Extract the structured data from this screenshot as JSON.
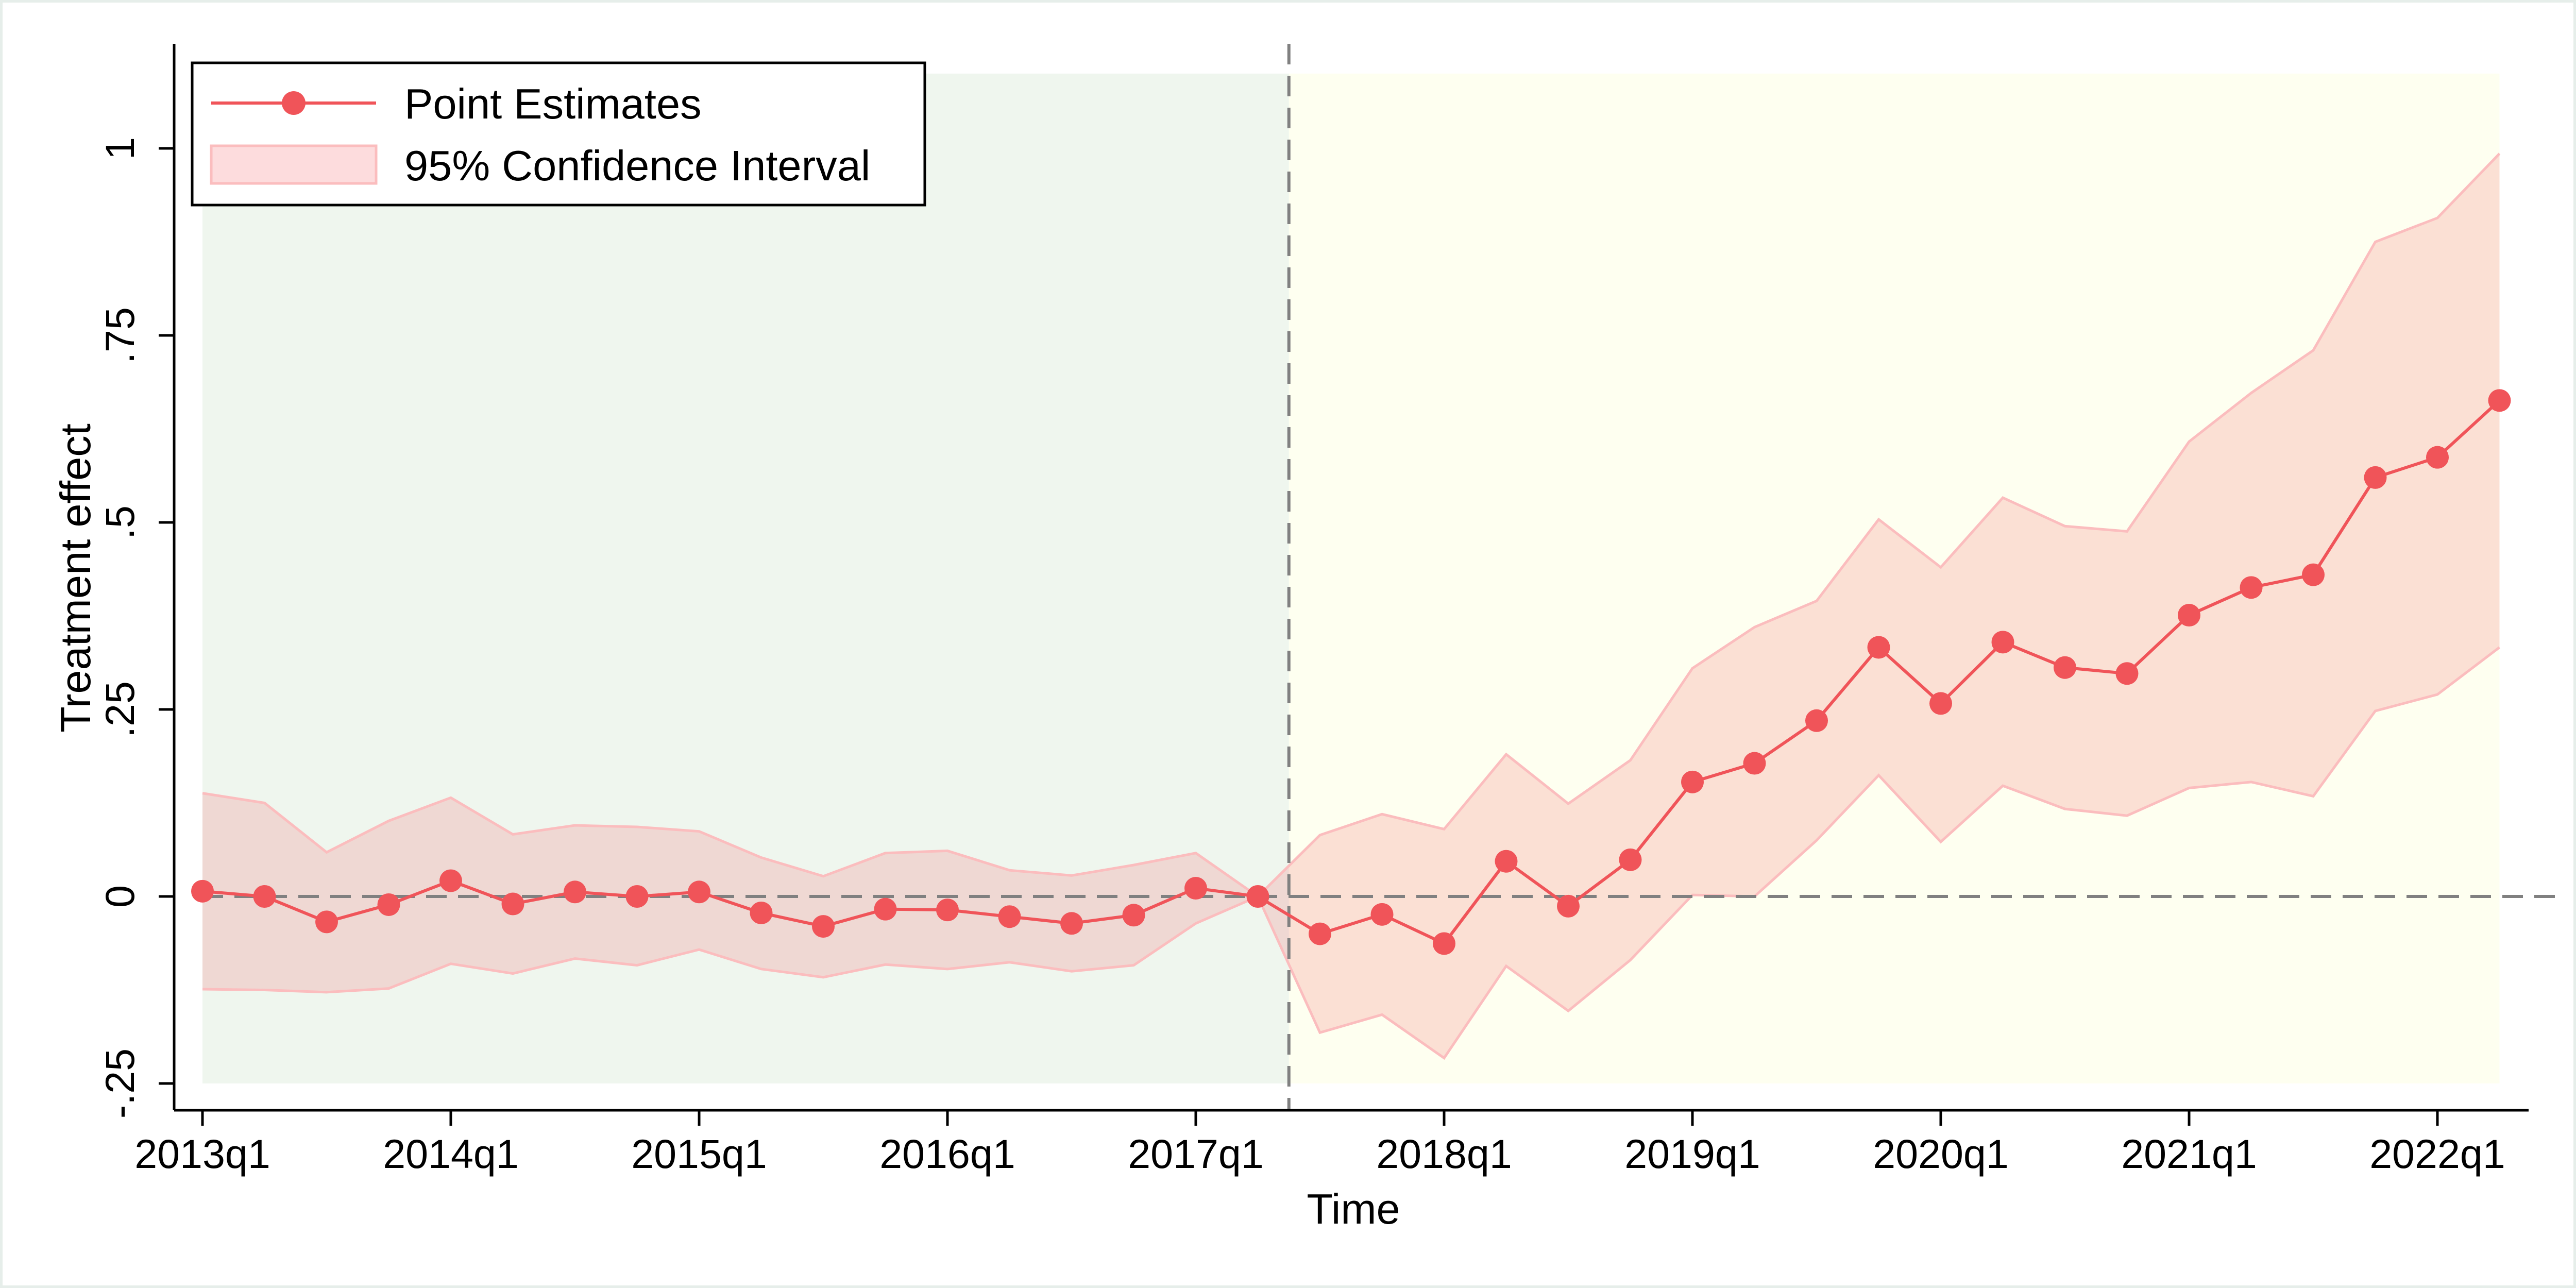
{
  "chart_data": {
    "type": "line",
    "title": "",
    "xlabel": "Time",
    "ylabel": "Treatment effect",
    "ylim": [
      -0.25,
      1.1
    ],
    "xlim": [
      "2013q1",
      "2022q2"
    ],
    "y_ticks": [
      {
        "value": -0.25,
        "label": "-.25"
      },
      {
        "value": 0,
        "label": "0"
      },
      {
        "value": 0.25,
        "label": ".25"
      },
      {
        "value": 0.5,
        "label": ".5"
      },
      {
        "value": 0.75,
        "label": ".75"
      },
      {
        "value": 1,
        "label": "1"
      }
    ],
    "x_ticks": [
      "2013q1",
      "2014q1",
      "2015q1",
      "2016q1",
      "2017q1",
      "2018q1",
      "2019q1",
      "2020q1",
      "2021q1",
      "2022q1"
    ],
    "x": [
      "2013q1",
      "2013q2",
      "2013q3",
      "2013q4",
      "2014q1",
      "2014q2",
      "2014q3",
      "2014q4",
      "2015q1",
      "2015q2",
      "2015q3",
      "2015q4",
      "2016q1",
      "2016q2",
      "2016q3",
      "2016q4",
      "2017q1",
      "2017q2",
      "2017q3",
      "2017q4",
      "2018q1",
      "2018q2",
      "2018q3",
      "2018q4",
      "2019q1",
      "2019q2",
      "2019q3",
      "2019q4",
      "2020q1",
      "2020q2",
      "2020q3",
      "2020q4",
      "2021q1",
      "2021q2",
      "2021q3",
      "2021q4",
      "2022q1",
      "2022q2"
    ],
    "series": [
      {
        "name": "Point Estimates",
        "color": "#f05459",
        "values": [
          0.007,
          0.0,
          -0.034,
          -0.011,
          0.021,
          -0.01,
          0.006,
          0.0,
          0.006,
          -0.022,
          -0.04,
          -0.017,
          -0.018,
          -0.027,
          -0.036,
          -0.025,
          0.011,
          0.0,
          -0.05,
          -0.024,
          -0.063,
          0.047,
          -0.013,
          0.049,
          0.153,
          0.178,
          0.235,
          0.333,
          0.258,
          0.34,
          0.306,
          0.298,
          0.376,
          0.413,
          0.43,
          0.56,
          0.587,
          0.663
        ]
      },
      {
        "name": "95% Confidence Interval",
        "color": "#fbbdbe",
        "lower": [
          -0.124,
          -0.125,
          -0.128,
          -0.123,
          -0.09,
          -0.103,
          -0.083,
          -0.092,
          -0.071,
          -0.097,
          -0.108,
          -0.091,
          -0.097,
          -0.088,
          -0.1,
          -0.092,
          -0.036,
          0.0,
          -0.182,
          -0.158,
          -0.216,
          -0.093,
          -0.153,
          -0.085,
          0.002,
          0.0,
          0.075,
          0.162,
          0.073,
          0.148,
          0.117,
          0.108,
          0.145,
          0.153,
          0.134,
          0.248,
          0.27,
          0.333
        ],
        "upper": [
          0.138,
          0.125,
          0.059,
          0.101,
          0.132,
          0.083,
          0.095,
          0.093,
          0.087,
          0.052,
          0.027,
          0.058,
          0.061,
          0.035,
          0.028,
          0.042,
          0.058,
          0.0,
          0.082,
          0.11,
          0.09,
          0.19,
          0.124,
          0.182,
          0.305,
          0.36,
          0.395,
          0.504,
          0.44,
          0.533,
          0.495,
          0.488,
          0.608,
          0.673,
          0.73,
          0.875,
          0.907,
          0.993
        ]
      }
    ],
    "shaded_regions": [
      {
        "from": "2013q1",
        "to": "2017q3",
        "ymin": -0.25,
        "ymax": 1.1,
        "color": "#eff6ee"
      },
      {
        "from": "2017q3",
        "to": "2022q2",
        "ymin": -0.25,
        "ymax": 1.1,
        "color": "#fefff0"
      }
    ],
    "reference_lines": {
      "horizontal_y": 0,
      "vertical_x": "2017q3",
      "style": "dashed",
      "color": "#808080"
    },
    "legend": {
      "position": "top-left",
      "entries": [
        "Point Estimates",
        "95% Confidence Interval"
      ]
    },
    "grid": false
  }
}
